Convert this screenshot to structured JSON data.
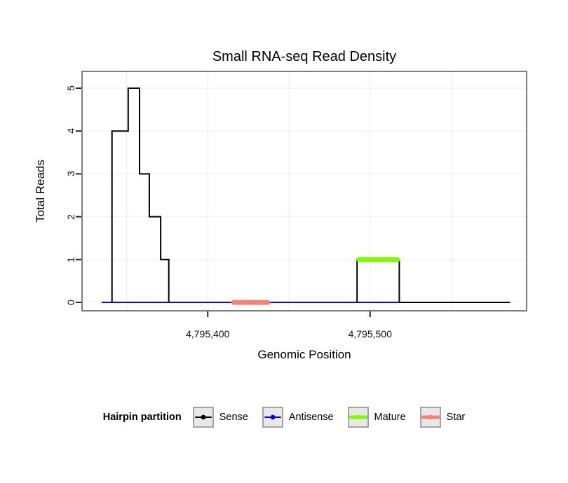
{
  "legend": {
    "title": "Hairpin partition",
    "items": [
      {
        "label": "Sense",
        "color": "#000000",
        "line_width": 2
      },
      {
        "label": "Antisense",
        "color": "#0000FF",
        "line_width": 2
      },
      {
        "label": "Mature",
        "color": "#7CFC00",
        "line_width": 5
      },
      {
        "label": "Star",
        "color": "#FA8072",
        "line_width": 5
      }
    ]
  },
  "chart_data": {
    "type": "line",
    "title": "Small RNA-seq Read Density",
    "xlabel": "Genomic Position",
    "ylabel": "Total Reads",
    "xlim": [
      4795323,
      4795596
    ],
    "ylim": [
      0,
      5
    ],
    "yticks": [
      0,
      1,
      2,
      3,
      4,
      5
    ],
    "ytick_labels": [
      "0",
      "1",
      "2",
      "3",
      "4",
      "5"
    ],
    "xticks": [
      4795400,
      4795500
    ],
    "xtick_labels": [
      "4,795,400",
      "4,795,500"
    ],
    "grid_x": [
      4795350,
      4795400,
      4795450,
      4795500,
      4795550
    ],
    "grid_y": [
      0,
      1,
      2,
      3,
      4,
      5
    ],
    "grid": true,
    "legend_position": "bottom",
    "series": [
      {
        "name": "Sense",
        "type": "step",
        "color": "#000000",
        "width": 2,
        "points": [
          [
            4795335,
            0
          ],
          [
            4795341,
            0
          ],
          [
            4795341,
            4
          ],
          [
            4795351,
            4
          ],
          [
            4795351,
            5
          ],
          [
            4795358,
            5
          ],
          [
            4795358,
            3
          ],
          [
            4795364,
            3
          ],
          [
            4795364,
            2
          ],
          [
            4795371,
            2
          ],
          [
            4795371,
            1
          ],
          [
            4795376,
            1
          ],
          [
            4795376,
            0
          ],
          [
            4795492,
            0
          ],
          [
            4795492,
            1
          ],
          [
            4795518,
            1
          ],
          [
            4795518,
            0
          ],
          [
            4795586,
            0
          ]
        ]
      },
      {
        "name": "Antisense",
        "type": "line",
        "color": "#0000FF",
        "width": 2,
        "points": [
          [
            4795335,
            0
          ],
          [
            4795518,
            0
          ]
        ]
      },
      {
        "name": "Star",
        "type": "segment",
        "color": "#FA8072",
        "width": 7,
        "points": [
          [
            4795416,
            0
          ],
          [
            4795437,
            0
          ]
        ]
      },
      {
        "name": "Mature",
        "type": "segment",
        "color": "#7CFC00",
        "width": 7,
        "points": [
          [
            4795493,
            1
          ],
          [
            4795517,
            1
          ]
        ]
      }
    ]
  }
}
